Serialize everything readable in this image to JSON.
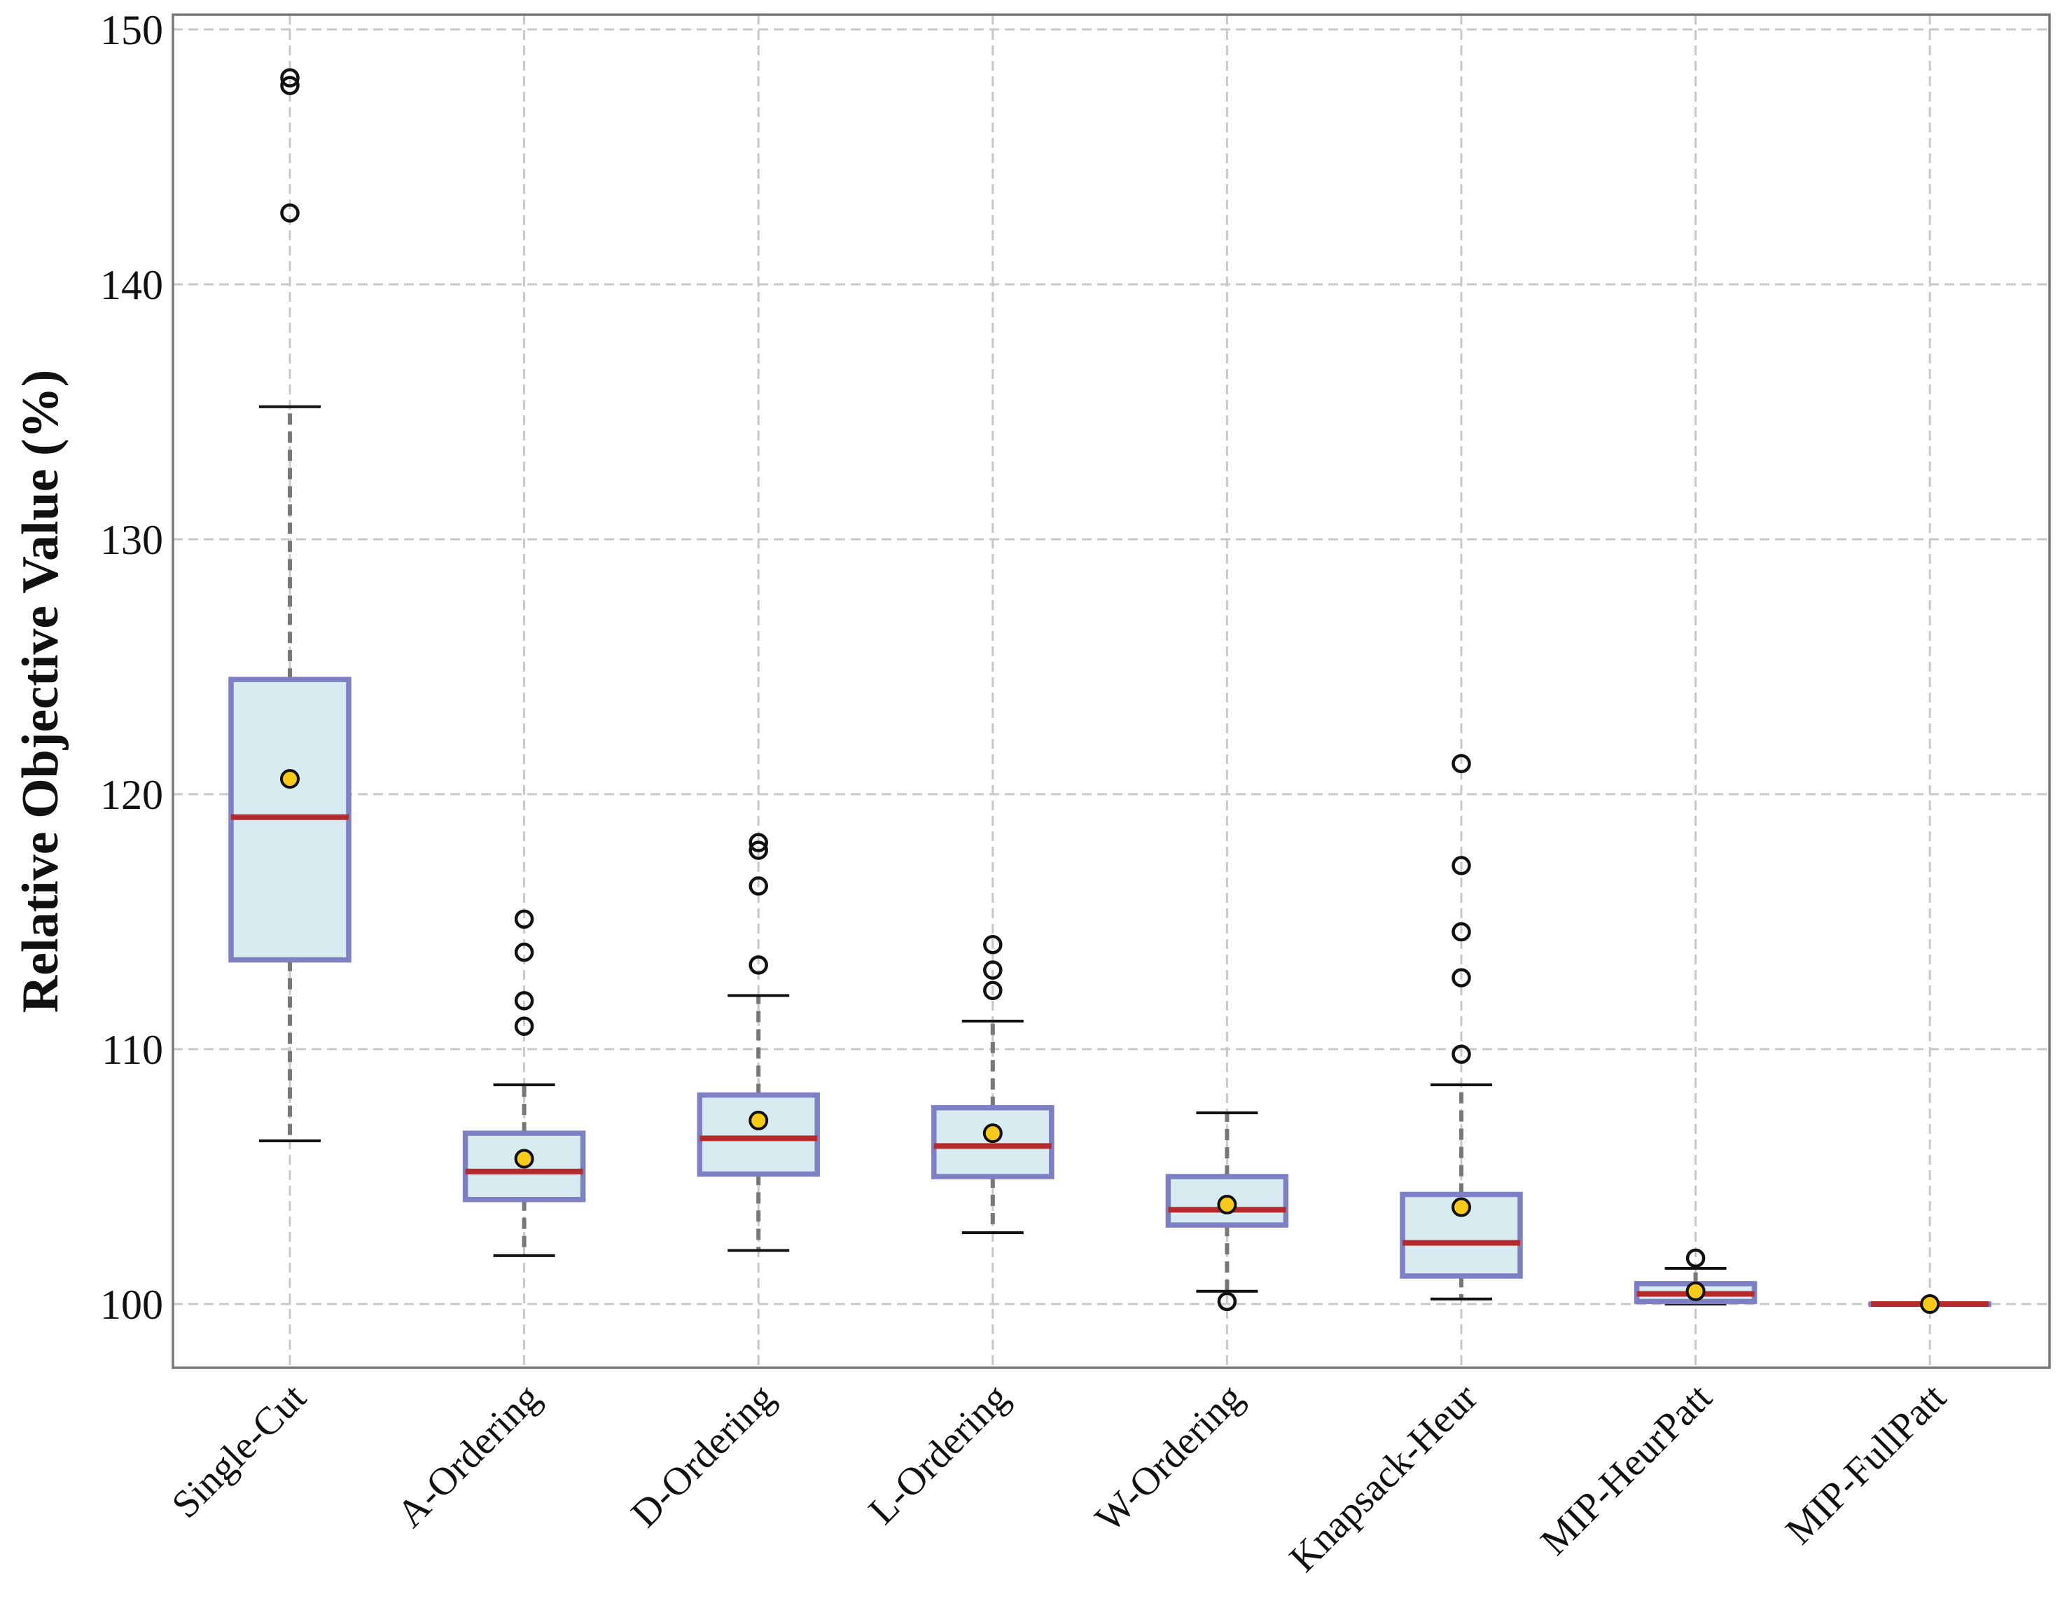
{
  "chart_data": {
    "type": "box",
    "title": "",
    "xlabel": "",
    "ylabel": "Relative Objective Value (%)",
    "ylim": [
      97.6,
      150.3
    ],
    "yticks": [
      100,
      110,
      120,
      130,
      140,
      150
    ],
    "grid": true,
    "colors": {
      "box_fill": "#d8ebf1",
      "box_edge": "#7e80c6",
      "median": "#b52a2a",
      "mean_fill": "#f7cb15",
      "whisker": "#777777",
      "cap": "#111111",
      "grid": "#c8c8c8"
    },
    "categories": [
      "Single-Cut",
      "A-Ordering",
      "D-Ordering",
      "L-Ordering",
      "W-Ordering",
      "Knapsack-Heur",
      "MIP-HeurPatt",
      "MIP-FullPatt"
    ],
    "series": [
      {
        "name": "Single-Cut",
        "whisker_low": 106.4,
        "q1": 113.5,
        "median": 119.1,
        "q3": 124.5,
        "whisker_high": 135.2,
        "mean": 120.6,
        "outliers": [
          142.8,
          147.8,
          148.1
        ]
      },
      {
        "name": "A-Ordering",
        "whisker_low": 101.9,
        "q1": 104.1,
        "median": 105.2,
        "q3": 106.7,
        "whisker_high": 108.6,
        "mean": 105.7,
        "outliers": [
          110.9,
          111.9,
          113.8,
          115.1
        ]
      },
      {
        "name": "D-Ordering",
        "whisker_low": 102.1,
        "q1": 105.1,
        "median": 106.5,
        "q3": 108.2,
        "whisker_high": 112.1,
        "mean": 107.2,
        "outliers": [
          113.3,
          116.4,
          117.8,
          118.1
        ]
      },
      {
        "name": "L-Ordering",
        "whisker_low": 102.8,
        "q1": 105.0,
        "median": 106.2,
        "q3": 107.7,
        "whisker_high": 111.1,
        "mean": 106.7,
        "outliers": [
          112.3,
          113.1,
          114.1
        ]
      },
      {
        "name": "W-Ordering",
        "whisker_low": 100.5,
        "q1": 103.1,
        "median": 103.7,
        "q3": 105.0,
        "whisker_high": 107.5,
        "mean": 103.9,
        "outliers": [
          100.1
        ]
      },
      {
        "name": "Knapsack-Heur",
        "whisker_low": 100.2,
        "q1": 101.1,
        "median": 102.4,
        "q3": 104.3,
        "whisker_high": 108.6,
        "mean": 103.8,
        "outliers": [
          109.8,
          112.8,
          114.6,
          117.2,
          121.2
        ]
      },
      {
        "name": "MIP-HeurPatt",
        "whisker_low": 100.0,
        "q1": 100.1,
        "median": 100.4,
        "q3": 100.8,
        "whisker_high": 101.4,
        "mean": 100.5,
        "outliers": [
          101.8
        ]
      },
      {
        "name": "MIP-FullPatt",
        "whisker_low": 100.0,
        "q1": 100.0,
        "median": 100.0,
        "q3": 100.0,
        "whisker_high": 100.0,
        "mean": 100.0,
        "outliers": []
      }
    ]
  }
}
